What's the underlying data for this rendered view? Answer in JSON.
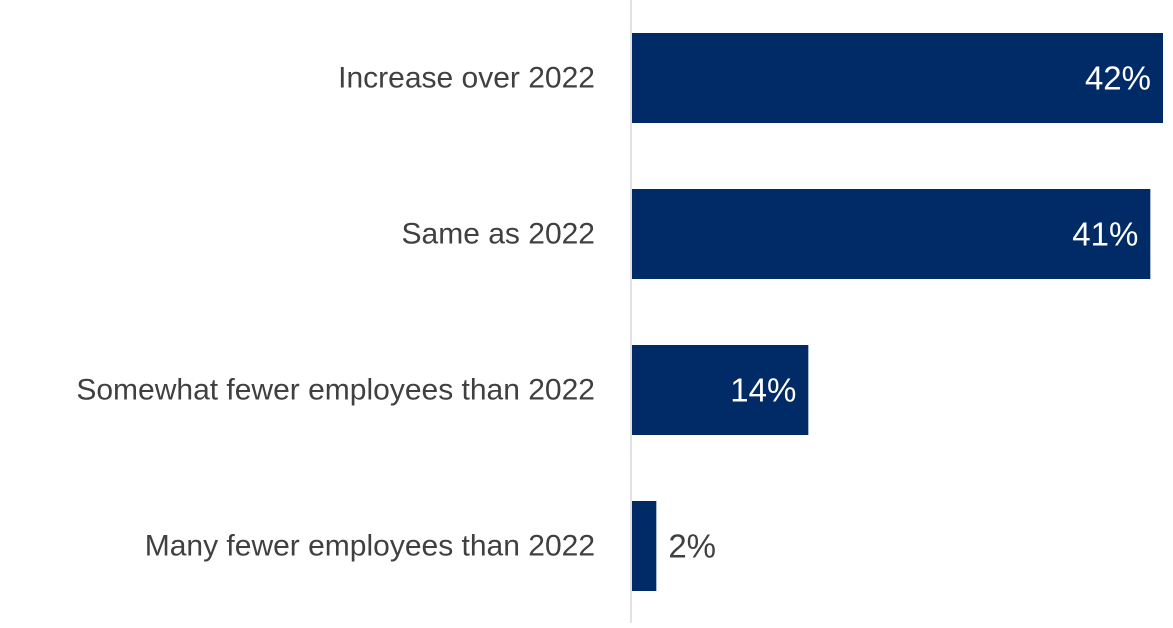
{
  "chart_data": {
    "type": "bar",
    "orientation": "horizontal",
    "title": "",
    "xlabel": "",
    "ylabel": "",
    "categories": [
      "Increase over 2022",
      "Same as 2022",
      "Somewhat fewer employees than 2022",
      "Many fewer employees than 2022"
    ],
    "values": [
      42,
      41,
      14,
      2
    ],
    "data_labels": [
      "42%",
      "41%",
      "14%",
      "2%"
    ],
    "unit": "%",
    "xlim": [
      0,
      42
    ],
    "grid": false,
    "legend": "none"
  },
  "colors": {
    "bar": "#002B67",
    "category_text": "#404040",
    "label_inside": "#ffffff",
    "label_outside": "#404040",
    "axis": "#d9d9d9"
  }
}
